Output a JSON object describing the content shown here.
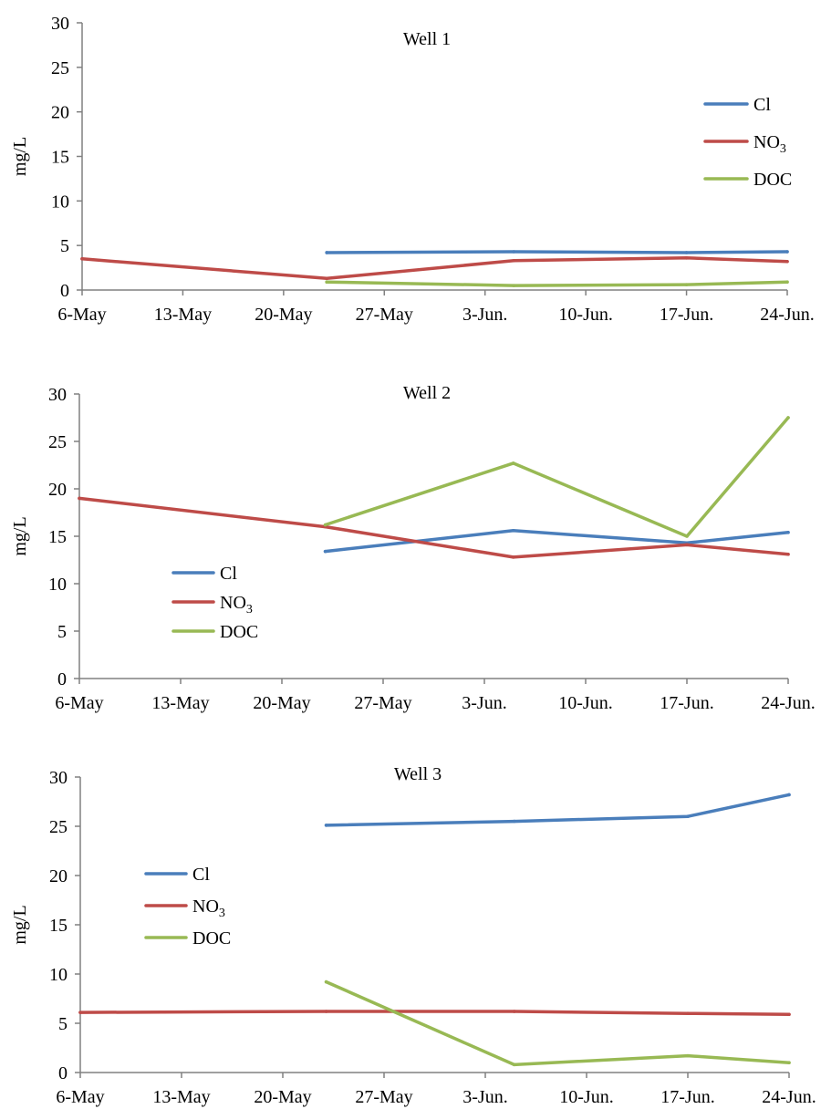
{
  "chart_data": [
    {
      "type": "line",
      "title": "Well 1",
      "ylabel": "mg/L",
      "xlabel": "",
      "ylim": [
        0,
        30
      ],
      "y_ticks": [
        "0",
        "5",
        "10",
        "15",
        "20",
        "25",
        "30"
      ],
      "x_ticks": [
        "6-May",
        "13-May",
        "20-May",
        "27-May",
        "3-Jun.",
        "10-Jun.",
        "17-Jun.",
        "24-Jun."
      ],
      "legend_position": "top-right",
      "series": [
        {
          "name": "Cl",
          "color": "#4a7ebb",
          "points": [
            [
              "2013-05-23",
              4.2
            ],
            [
              "2013-06-05",
              4.3
            ],
            [
              "2013-06-17",
              4.2
            ],
            [
              "2013-06-24",
              4.3
            ]
          ]
        },
        {
          "name": "NO3",
          "color": "#be4b48",
          "points": [
            [
              "2013-05-06",
              3.5
            ],
            [
              "2013-05-23",
              1.3
            ],
            [
              "2013-06-05",
              3.3
            ],
            [
              "2013-06-17",
              3.6
            ],
            [
              "2013-06-24",
              3.2
            ]
          ]
        },
        {
          "name": "DOC",
          "color": "#98b954",
          "points": [
            [
              "2013-05-23",
              0.9
            ],
            [
              "2013-06-05",
              0.5
            ],
            [
              "2013-06-17",
              0.6
            ],
            [
              "2013-06-24",
              0.9
            ]
          ]
        }
      ]
    },
    {
      "type": "line",
      "title": "Well 2",
      "ylabel": "mg/L",
      "xlabel": "",
      "ylim": [
        0,
        30
      ],
      "y_ticks": [
        "0",
        "5",
        "10",
        "15",
        "20",
        "25",
        "30"
      ],
      "x_ticks": [
        "6-May",
        "13-May",
        "20-May",
        "27-May",
        "3-Jun.",
        "10-Jun.",
        "17-Jun.",
        "24-Jun."
      ],
      "legend_position": "bottom-left",
      "series": [
        {
          "name": "Cl",
          "color": "#4a7ebb",
          "points": [
            [
              "2013-05-23",
              13.4
            ],
            [
              "2013-06-05",
              15.6
            ],
            [
              "2013-06-17",
              14.3
            ],
            [
              "2013-06-24",
              15.4
            ]
          ]
        },
        {
          "name": "NO3",
          "color": "#be4b48",
          "points": [
            [
              "2013-05-06",
              19.0
            ],
            [
              "2013-05-23",
              16.0
            ],
            [
              "2013-06-05",
              12.8
            ],
            [
              "2013-06-17",
              14.1
            ],
            [
              "2013-06-24",
              13.1
            ]
          ]
        },
        {
          "name": "DOC",
          "color": "#98b954",
          "points": [
            [
              "2013-05-23",
              16.2
            ],
            [
              "2013-06-05",
              22.7
            ],
            [
              "2013-06-17",
              15.0
            ],
            [
              "2013-06-24",
              27.5
            ]
          ]
        }
      ]
    },
    {
      "type": "line",
      "title": "Well 3",
      "ylabel": "mg/L",
      "xlabel": "",
      "ylim": [
        0,
        30
      ],
      "y_ticks": [
        "0",
        "5",
        "10",
        "15",
        "20",
        "25",
        "30"
      ],
      "x_ticks": [
        "6-May",
        "13-May",
        "20-May",
        "27-May",
        "3-Jun.",
        "10-Jun.",
        "17-Jun.",
        "24-Jun."
      ],
      "legend_position": "middle-left",
      "series": [
        {
          "name": "Cl",
          "color": "#4a7ebb",
          "points": [
            [
              "2013-05-23",
              25.1
            ],
            [
              "2013-06-05",
              25.5
            ],
            [
              "2013-06-17",
              26.0
            ],
            [
              "2013-06-24",
              28.2
            ]
          ]
        },
        {
          "name": "NO3",
          "color": "#be4b48",
          "points": [
            [
              "2013-05-06",
              6.1
            ],
            [
              "2013-05-23",
              6.2
            ],
            [
              "2013-06-05",
              6.2
            ],
            [
              "2013-06-17",
              6.0
            ],
            [
              "2013-06-24",
              5.9
            ]
          ]
        },
        {
          "name": "DOC",
          "color": "#98b954",
          "points": [
            [
              "2013-05-23",
              9.2
            ],
            [
              "2013-06-05",
              0.8
            ],
            [
              "2013-06-17",
              1.7
            ],
            [
              "2013-06-24",
              1.0
            ]
          ]
        }
      ]
    }
  ]
}
